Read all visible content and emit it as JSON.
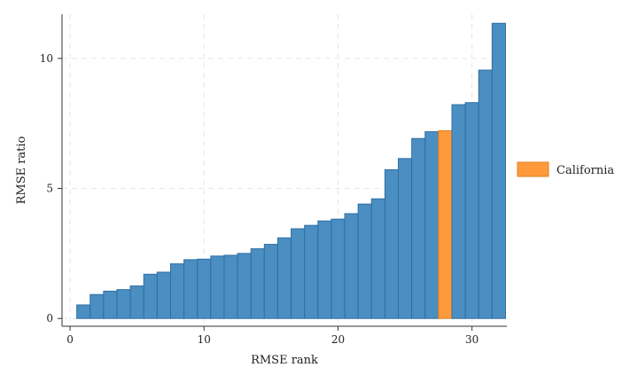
{
  "chart_data": {
    "type": "bar",
    "title": "",
    "xlabel": "RMSE rank",
    "ylabel": "RMSE ratio",
    "xlim": [
      -0.6,
      32.6
    ],
    "ylim": [
      -0.3,
      11.7
    ],
    "xticks": [
      0,
      10,
      20,
      30
    ],
    "xtick_labels": [
      "0",
      "10",
      "20",
      "30"
    ],
    "yticks": [
      0,
      5,
      10
    ],
    "ytick_labels": [
      "0",
      "5",
      "10"
    ],
    "grid": true,
    "legend_position": "right",
    "highlight_rank": 28,
    "colors": {
      "default": "#4a8ec2",
      "default_edge": "#2f6fa3",
      "highlight": "#ff9a3c",
      "highlight_edge": "#e57f1f",
      "grid": "#e6e6e6"
    },
    "series": [
      {
        "name": "",
        "x": [
          1,
          2,
          3,
          4,
          5,
          6,
          7,
          8,
          9,
          10,
          11,
          12,
          13,
          14,
          15,
          16,
          17,
          18,
          19,
          20,
          21,
          22,
          23,
          24,
          25,
          26,
          27,
          28,
          29,
          30,
          31,
          32
        ],
        "values": [
          0.52,
          0.92,
          1.05,
          1.11,
          1.25,
          1.7,
          1.78,
          2.1,
          2.26,
          2.28,
          2.4,
          2.43,
          2.5,
          2.68,
          2.85,
          3.1,
          3.45,
          3.58,
          3.75,
          3.82,
          4.03,
          4.4,
          4.6,
          5.72,
          6.15,
          6.92,
          7.18,
          7.22,
          8.22,
          8.3,
          9.55,
          11.35
        ]
      }
    ],
    "legend": [
      {
        "label": "California",
        "color": "#ff9a3c"
      }
    ]
  }
}
